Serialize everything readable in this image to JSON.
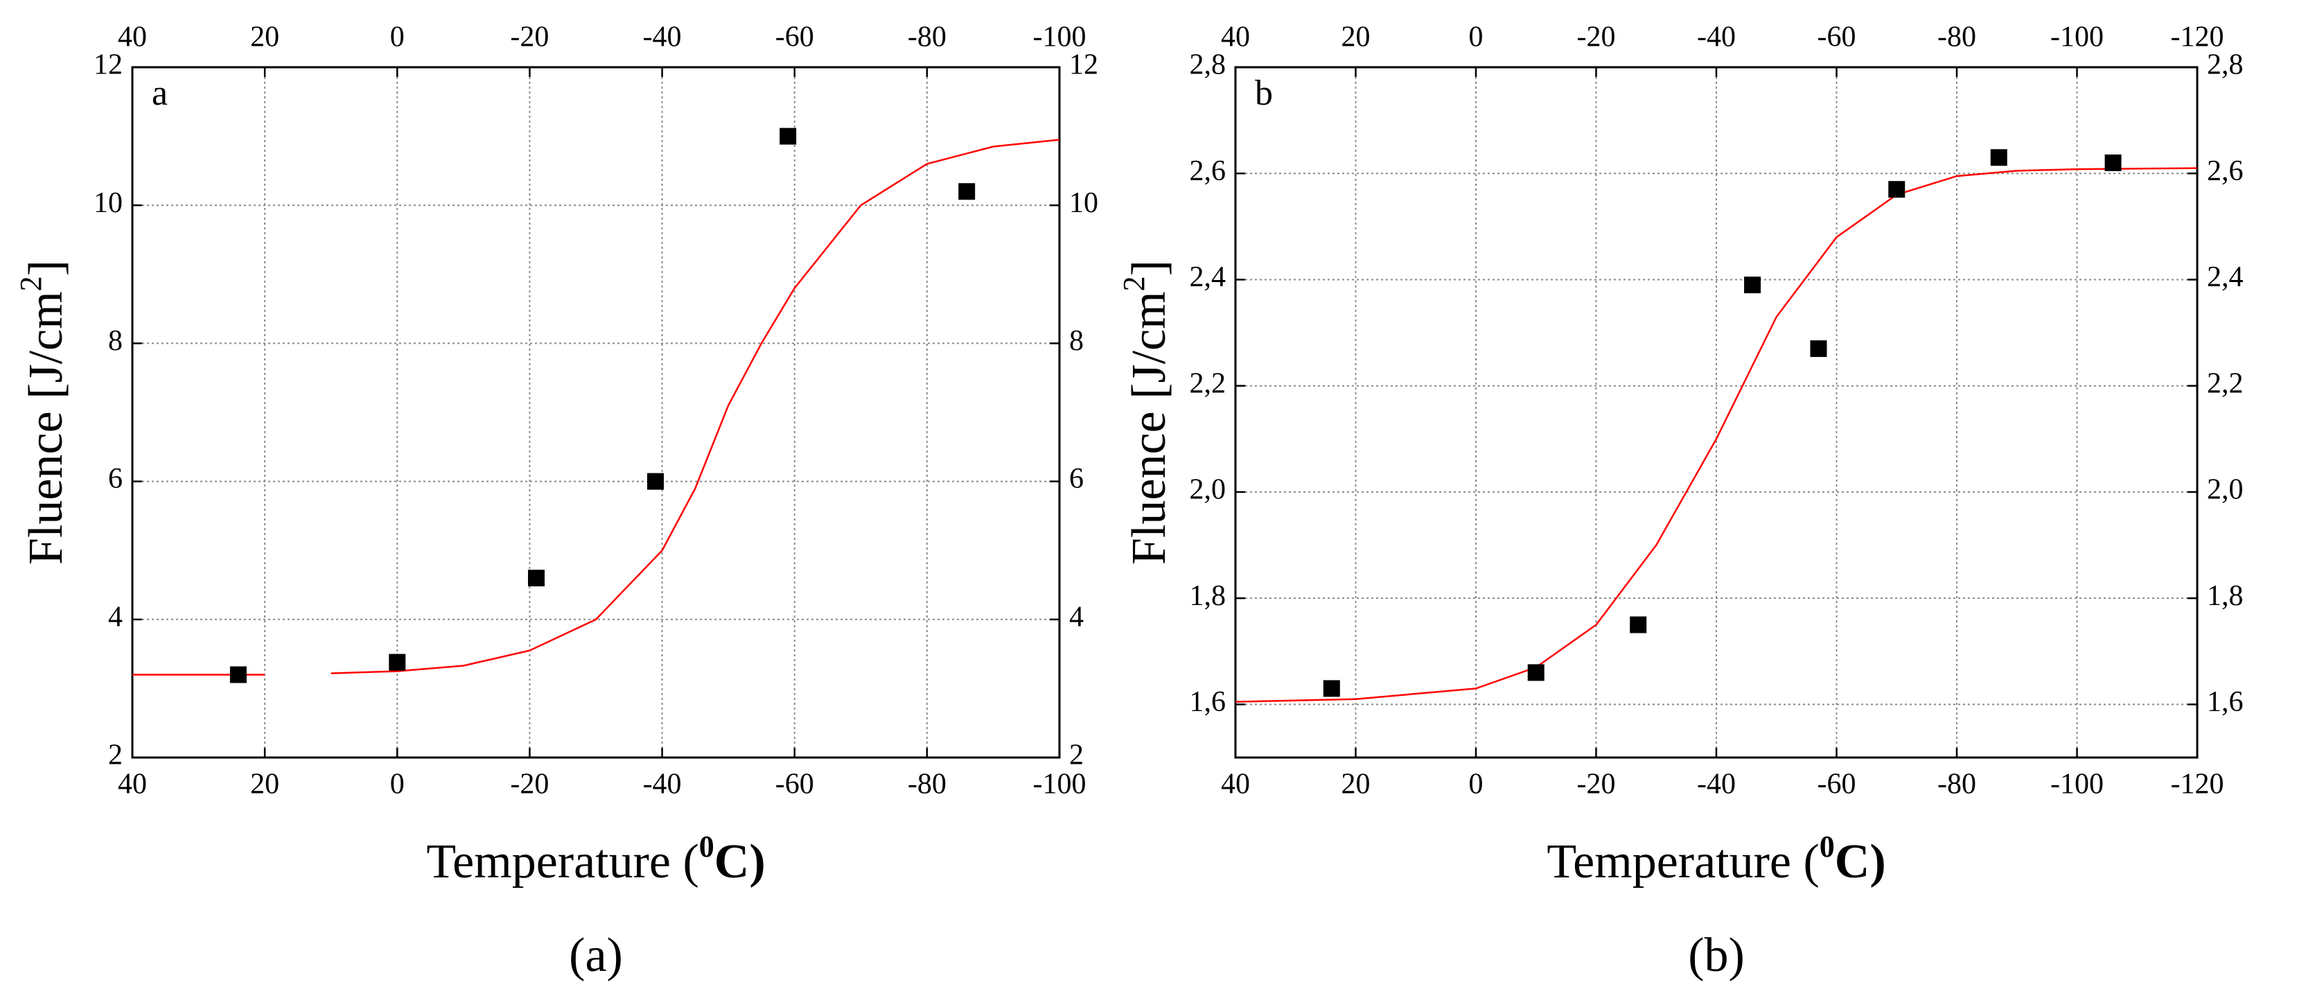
{
  "chart_data": [
    {
      "type": "scatter",
      "panel_label": "a",
      "caption": "(a)",
      "xlabel": "Temperature  (",
      "xlabel_sup": "0",
      "xlabel_end": "C)",
      "ylabel": "Fluence [J/cm",
      "ylabel_sup": "2",
      "ylabel_end": "]",
      "xlim": [
        40,
        -100
      ],
      "xticks": [
        40,
        20,
        0,
        -20,
        -40,
        -60,
        -80,
        -100
      ],
      "ylim": [
        2,
        12
      ],
      "yticks": [
        2,
        4,
        6,
        8,
        10,
        12
      ],
      "grid": true,
      "points": {
        "color": "#000000",
        "x": [
          24,
          0,
          -21,
          -39,
          -59,
          -86
        ],
        "values": [
          3.2,
          3.38,
          4.6,
          6.0,
          11.0,
          10.2
        ]
      },
      "fit": {
        "color": "#ff0000",
        "x": [
          40,
          20,
          15,
          10,
          0,
          -10,
          -20,
          -30,
          -40,
          -45,
          -50,
          -55,
          -60,
          -70,
          -80,
          -90,
          -100
        ],
        "values": [
          3.2,
          3.2,
          null,
          3.22,
          3.25,
          3.33,
          3.55,
          4.0,
          5.0,
          5.9,
          7.1,
          8.0,
          8.8,
          10.0,
          10.6,
          10.85,
          10.95
        ]
      }
    },
    {
      "type": "scatter",
      "panel_label": "b",
      "caption": "(b)",
      "xlabel": "Temperature  (",
      "xlabel_sup": "0",
      "xlabel_end": "C)",
      "ylabel": "Fluence [J/cm",
      "ylabel_sup": "2",
      "ylabel_end": "]",
      "xlim": [
        40,
        -120
      ],
      "xticks": [
        40,
        20,
        0,
        -20,
        -40,
        -60,
        -80,
        -100,
        -120
      ],
      "ylim": [
        1.5,
        2.8
      ],
      "yticks": [
        {
          "value": 1.6,
          "label": "1,6"
        },
        {
          "value": 1.8,
          "label": "1,8"
        },
        {
          "value": 2.0,
          "label": "2,0"
        },
        {
          "value": 2.2,
          "label": "2,2"
        },
        {
          "value": 2.4,
          "label": "2,4"
        },
        {
          "value": 2.6,
          "label": "2,6"
        },
        {
          "value": 2.8,
          "label": "2,8"
        }
      ],
      "grid": true,
      "points": {
        "color": "#000000",
        "x": [
          24,
          -10,
          -27,
          -46,
          -57,
          -70,
          -87,
          -106
        ],
        "values": [
          1.63,
          1.66,
          1.75,
          2.39,
          2.27,
          2.57,
          2.63,
          2.62
        ]
      },
      "fit": {
        "color": "#ff0000",
        "x": [
          40,
          20,
          0,
          -10,
          -20,
          -30,
          -40,
          -50,
          -60,
          -70,
          -80,
          -90,
          -100,
          -120
        ],
        "values": [
          1.605,
          1.61,
          1.63,
          1.67,
          1.75,
          1.9,
          2.1,
          2.33,
          2.48,
          2.56,
          2.595,
          2.605,
          2.608,
          2.61
        ]
      }
    }
  ]
}
